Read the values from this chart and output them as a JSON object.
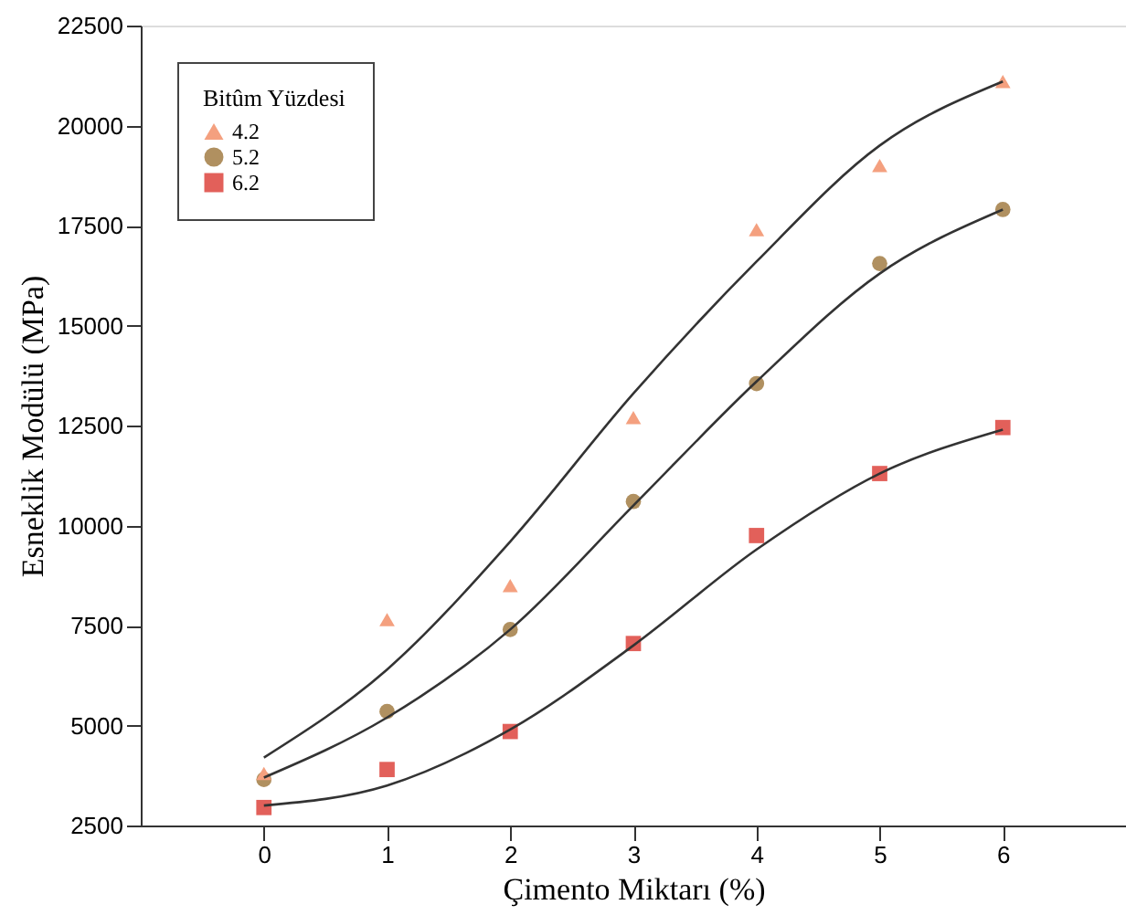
{
  "chart_data": {
    "type": "scatter",
    "xlabel": "Çimento Miktarı (%)",
    "ylabel": "Esneklik Modülü (MPa)",
    "legend_title": "Bitûm Yüzdesi",
    "legend": "top left",
    "grid": false,
    "x": [
      0,
      1,
      2,
      3,
      4,
      5,
      6
    ],
    "xlim": [
      -1,
      7
    ],
    "xticks": [
      0,
      1,
      2,
      3,
      4,
      5,
      6
    ],
    "ylim": [
      2500,
      22500
    ],
    "yticks": [
      2500,
      5000,
      7500,
      10000,
      12500,
      15000,
      17500,
      20000,
      22500
    ],
    "series": [
      {
        "name": "4.2",
        "color": "#f4a07f",
        "marker": "triangle",
        "values": [
          3800,
          7650,
          8500,
          12700,
          17400,
          19000,
          21100
        ]
      },
      {
        "name": "5.2",
        "color": "#b09060",
        "marker": "circle",
        "values": [
          3650,
          5350,
          7400,
          10600,
          13550,
          16550,
          17900
        ]
      },
      {
        "name": "6.2",
        "color": "#e2605a",
        "marker": "square",
        "values": [
          2950,
          3900,
          4850,
          7050,
          9750,
          11300,
          12450
        ]
      },
      {
        "type": "line",
        "color": "#333333",
        "values": [
          4200,
          6400,
          9600,
          13300,
          16600,
          19500,
          21100
        ]
      },
      {
        "type": "line",
        "color": "#333333",
        "values": [
          3700,
          5200,
          7400,
          10500,
          13600,
          16300,
          17900
        ]
      },
      {
        "type": "line",
        "color": "#333333",
        "values": [
          3000,
          3500,
          4900,
          7000,
          9400,
          11300,
          12400
        ]
      }
    ]
  }
}
